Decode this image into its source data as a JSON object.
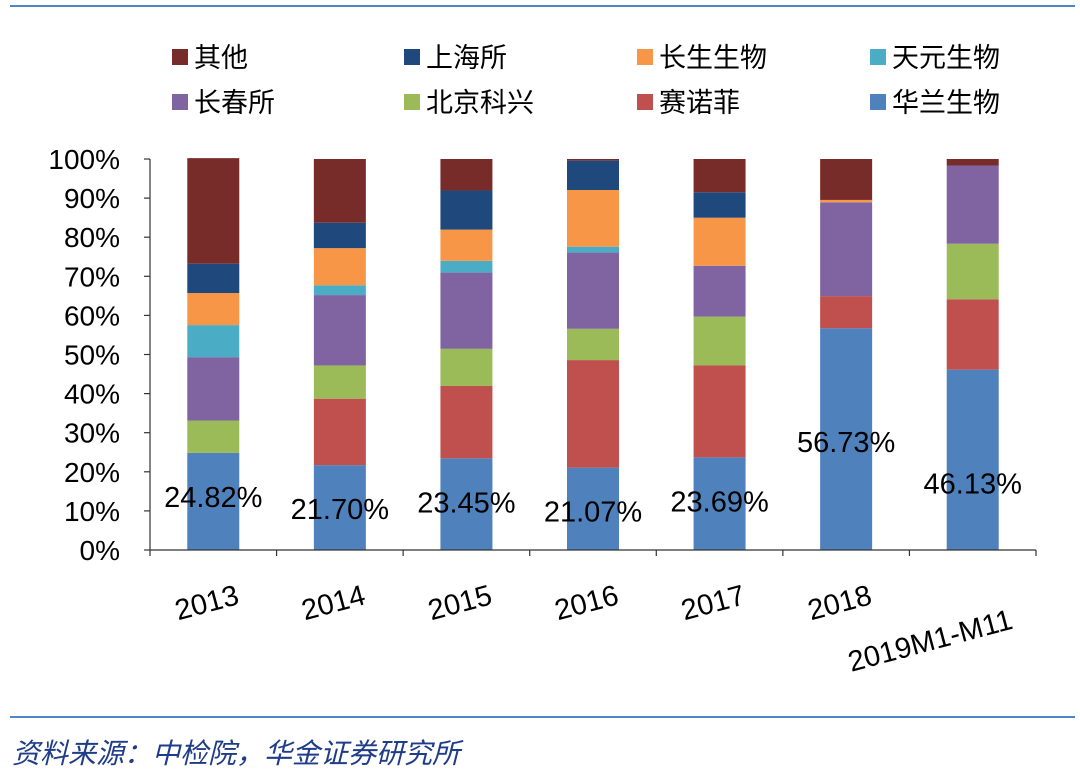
{
  "chart_data": {
    "type": "bar",
    "stacked": true,
    "percent_axis": true,
    "categories": [
      "2013",
      "2014",
      "2015",
      "2016",
      "2017",
      "2018",
      "2019M1-M11"
    ],
    "ylim": [
      0,
      100
    ],
    "yticks": [
      "0%",
      "10%",
      "20%",
      "30%",
      "40%",
      "50%",
      "60%",
      "70%",
      "80%",
      "90%",
      "100%"
    ],
    "legend_placement": "top",
    "series": [
      {
        "name": "华兰生物",
        "color": "#4f81bd",
        "values": [
          24.82,
          21.7,
          23.45,
          21.07,
          23.69,
          56.73,
          46.13
        ]
      },
      {
        "name": "赛诺菲",
        "color": "#c0504d",
        "values": [
          0,
          17,
          18.5,
          27.5,
          23.5,
          8.2,
          18
        ]
      },
      {
        "name": "北京科兴",
        "color": "#9bbb59",
        "values": [
          8.3,
          8.5,
          9.5,
          8,
          12.5,
          0,
          14.2
        ]
      },
      {
        "name": "长春所",
        "color": "#8064a2",
        "values": [
          16.2,
          18,
          19.5,
          19.5,
          13,
          24,
          20
        ]
      },
      {
        "name": "天元生物",
        "color": "#4bacc6",
        "values": [
          8.2,
          2.5,
          3,
          1.5,
          0,
          0,
          0
        ]
      },
      {
        "name": "长生生物",
        "color": "#f79646",
        "values": [
          8.2,
          9.5,
          8,
          14.5,
          12.3,
          0.6,
          0
        ]
      },
      {
        "name": "上海所",
        "color": "#1f497d",
        "values": [
          7.5,
          6.5,
          10,
          7.5,
          6.5,
          0,
          0
        ]
      },
      {
        "name": "其他",
        "color": "#772c2a",
        "values": [
          27.0,
          16.3,
          8.05,
          0.43,
          8.51,
          10.47,
          1.67
        ]
      }
    ],
    "data_labels": [
      "24.82%",
      "21.70%",
      "23.45%",
      "21.07%",
      "23.69%",
      "56.73%",
      "46.13%"
    ],
    "legend_order": [
      "其他",
      "上海所",
      "长生生物",
      "天元生物",
      "长春所",
      "北京科兴",
      "赛诺菲",
      "华兰生物"
    ]
  },
  "source_text": "资料来源：中检院，华金证券研究所"
}
